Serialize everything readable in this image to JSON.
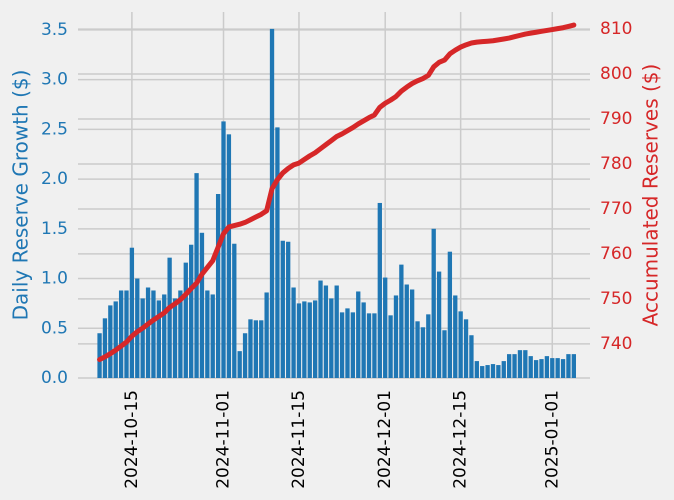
{
  "chart_data": {
    "type": "bar",
    "ylabel": "Daily Reserve Growth ($)",
    "y2label": "Accumulated Reserves ($)",
    "x": [
      "2024-10-09",
      "2024-10-10",
      "2024-10-11",
      "2024-10-12",
      "2024-10-13",
      "2024-10-14",
      "2024-10-15",
      "2024-10-16",
      "2024-10-17",
      "2024-10-18",
      "2024-10-19",
      "2024-10-20",
      "2024-10-21",
      "2024-10-22",
      "2024-10-23",
      "2024-10-24",
      "2024-10-25",
      "2024-10-26",
      "2024-10-27",
      "2024-10-28",
      "2024-10-29",
      "2024-10-30",
      "2024-10-31",
      "2024-11-01",
      "2024-11-02",
      "2024-11-03",
      "2024-11-04",
      "2024-11-05",
      "2024-11-06",
      "2024-11-07",
      "2024-11-08",
      "2024-11-09",
      "2024-11-10",
      "2024-11-11",
      "2024-11-12",
      "2024-11-13",
      "2024-11-14",
      "2024-11-15",
      "2024-11-16",
      "2024-11-17",
      "2024-11-18",
      "2024-11-19",
      "2024-11-20",
      "2024-11-21",
      "2024-11-22",
      "2024-11-23",
      "2024-11-24",
      "2024-11-25",
      "2024-11-26",
      "2024-11-27",
      "2024-11-28",
      "2024-11-29",
      "2024-11-30",
      "2024-12-01",
      "2024-12-02",
      "2024-12-03",
      "2024-12-04",
      "2024-12-05",
      "2024-12-06",
      "2024-12-07",
      "2024-12-08",
      "2024-12-09",
      "2024-12-10",
      "2024-12-11",
      "2024-12-12",
      "2024-12-13",
      "2024-12-14",
      "2024-12-15",
      "2024-12-16",
      "2024-12-17",
      "2024-12-18",
      "2024-12-19",
      "2024-12-20",
      "2024-12-21",
      "2024-12-22",
      "2024-12-23",
      "2024-12-24",
      "2024-12-25",
      "2024-12-26",
      "2024-12-27",
      "2024-12-28",
      "2024-12-29",
      "2024-12-30",
      "2024-12-31",
      "2025-01-01",
      "2025-01-02",
      "2025-01-03",
      "2025-01-04",
      "2025-01-05"
    ],
    "series": [
      {
        "color": "#1f77b4",
        "values": [
          0.45,
          0.6,
          0.73,
          0.77,
          0.88,
          0.88,
          1.31,
          1.0,
          0.8,
          0.91,
          0.88,
          0.78,
          0.84,
          1.21,
          0.8,
          0.88,
          1.16,
          1.34,
          2.06,
          1.46,
          0.88,
          0.84,
          1.85,
          2.58,
          2.45,
          1.35,
          0.27,
          0.45,
          0.59,
          0.58,
          0.58,
          0.86,
          3.51,
          2.52,
          1.38,
          1.37,
          0.91,
          0.75,
          0.77,
          0.76,
          0.78,
          0.98,
          0.93,
          0.8,
          0.93,
          0.66,
          0.7,
          0.66,
          0.87,
          0.76,
          0.65,
          0.65,
          1.76,
          1.01,
          0.63,
          0.83,
          1.14,
          0.94,
          0.89,
          0.57,
          0.51,
          0.64,
          1.5,
          1.07,
          0.48,
          1.27,
          0.83,
          0.67,
          0.59,
          0.43,
          0.17,
          0.12,
          0.13,
          0.14,
          0.13,
          0.17,
          0.24,
          0.24,
          0.28,
          0.28,
          0.22,
          0.18,
          0.19,
          0.22,
          0.2,
          0.2,
          0.19,
          0.24,
          0.24
        ]
      },
      {
        "color": "#d62728",
        "axis": "y2",
        "values": [
          736.5,
          737.1,
          737.8,
          738.6,
          739.5,
          740.4,
          741.7,
          742.7,
          743.5,
          744.4,
          745.3,
          746.1,
          746.9,
          748.1,
          748.9,
          749.8,
          751.0,
          752.3,
          753.5,
          755.5,
          757.0,
          758.5,
          761.5,
          764.5,
          766.0,
          766.3,
          766.6,
          767.0,
          767.6,
          768.2,
          768.8,
          769.6,
          774.5,
          776.5,
          778.0,
          779.0,
          779.8,
          780.2,
          781.0,
          781.8,
          782.5,
          783.4,
          784.3,
          785.2,
          786.1,
          786.7,
          787.4,
          788.1,
          788.9,
          789.6,
          790.3,
          790.9,
          792.6,
          793.5,
          794.2,
          795.0,
          796.2,
          797.1,
          797.9,
          798.5,
          799.0,
          799.7,
          801.6,
          802.6,
          803.1,
          804.5,
          805.3,
          806.0,
          806.5,
          806.9,
          807.1,
          807.2,
          807.3,
          807.4,
          807.6,
          807.8,
          808.0,
          808.3,
          808.6,
          808.9,
          809.1,
          809.3,
          809.5,
          809.7,
          809.9,
          810.1,
          810.3,
          810.6,
          810.9
        ]
      }
    ],
    "xlim": [
      "2024-10-05",
      "2025-01-08"
    ],
    "xticks": [
      "2024-10-15",
      "2024-11-01",
      "2024-11-15",
      "2024-12-01",
      "2024-12-15",
      "2025-01-01"
    ],
    "ylim": [
      0,
      3.68
    ],
    "yticks": [
      {
        "value": 0,
        "label": "0.0"
      },
      {
        "value": 0.5,
        "label": "0.5"
      },
      {
        "value": 1,
        "label": "1.0"
      },
      {
        "value": 1.5,
        "label": "1.5"
      },
      {
        "value": 2,
        "label": "2.0"
      },
      {
        "value": 2.5,
        "label": "2.5"
      },
      {
        "value": 3,
        "label": "3.0"
      },
      {
        "value": 3.5,
        "label": "3.5"
      }
    ],
    "y2lim": [
      732.4,
      813.8
    ],
    "y2ticks": [
      740,
      750,
      760,
      770,
      780,
      790,
      800,
      810
    ],
    "grid": true
  }
}
